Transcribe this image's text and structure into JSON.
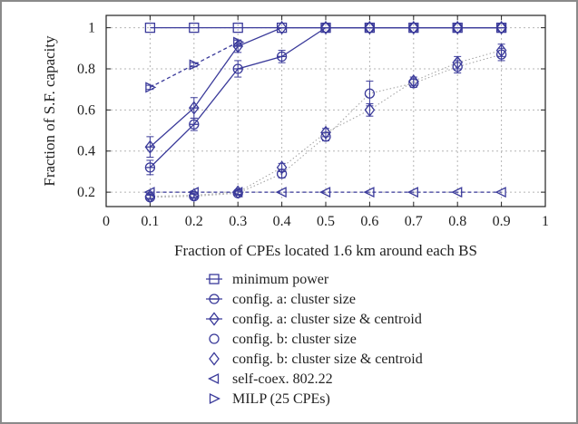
{
  "chart_data": {
    "type": "line",
    "xlabel": "Fraction of CPEs located 1.6 km around each BS",
    "ylabel": "Fraction of S.F. capacity",
    "xlim": [
      0,
      1
    ],
    "ylim": [
      0.13,
      1.06
    ],
    "xticks": [
      "0",
      "0.1",
      "0.2",
      "0.3",
      "0.4",
      "0.5",
      "0.6",
      "0.7",
      "0.8",
      "0.9",
      "1"
    ],
    "yticks": [
      "0.2",
      "0.4",
      "0.6",
      "0.8",
      "1"
    ],
    "grid": true,
    "legend_position": "below",
    "series": [
      {
        "name": "minimum power",
        "marker": "square",
        "line": "solid",
        "color": "#3a3a9a",
        "x": [
          0.1,
          0.2,
          0.3,
          0.4,
          0.5,
          0.6,
          0.7,
          0.8,
          0.9
        ],
        "y": [
          1,
          1,
          1,
          1,
          1,
          1,
          1,
          1,
          1
        ],
        "err": [
          0,
          0,
          0,
          0,
          0,
          0,
          0,
          0,
          0
        ]
      },
      {
        "name": "config. a: cluster size",
        "marker": "circle-line",
        "line": "solid",
        "color": "#3a3a9a",
        "x": [
          0.1,
          0.2,
          0.3,
          0.4,
          0.5,
          0.6,
          0.7,
          0.8,
          0.9
        ],
        "y": [
          0.32,
          0.53,
          0.8,
          0.86,
          1,
          1,
          1,
          1,
          1
        ],
        "err": [
          0.035,
          0.03,
          0.04,
          0.03,
          0,
          0,
          0,
          0,
          0
        ]
      },
      {
        "name": "config. a: cluster size & centroid",
        "marker": "diamond-line",
        "line": "solid",
        "color": "#3a3a9a",
        "x": [
          0.1,
          0.2,
          0.3,
          0.4,
          0.5,
          0.6,
          0.7,
          0.8,
          0.9
        ],
        "y": [
          0.42,
          0.61,
          0.91,
          1,
          1,
          1,
          1,
          1,
          1
        ],
        "err": [
          0.05,
          0.05,
          0.03,
          0,
          0,
          0,
          0,
          0,
          0
        ]
      },
      {
        "name": "config. b: cluster size",
        "marker": "circle",
        "line": "dotted",
        "color": "#3a3a9a",
        "x": [
          0.1,
          0.2,
          0.3,
          0.4,
          0.5,
          0.6,
          0.7,
          0.8,
          0.9
        ],
        "y": [
          0.175,
          0.18,
          0.195,
          0.29,
          0.47,
          0.68,
          0.73,
          0.81,
          0.87
        ],
        "err": [
          0.01,
          0.01,
          0.01,
          0.02,
          0.02,
          0.06,
          0.02,
          0.03,
          0.03
        ]
      },
      {
        "name": "config. b: cluster size & centroid",
        "marker": "diamond",
        "line": "dotted",
        "color": "#3a3a9a",
        "x": [
          0.1,
          0.2,
          0.3,
          0.4,
          0.5,
          0.6,
          0.7,
          0.8,
          0.9
        ],
        "y": [
          0.18,
          0.185,
          0.2,
          0.32,
          0.49,
          0.6,
          0.74,
          0.83,
          0.89
        ],
        "err": [
          0.01,
          0.01,
          0.01,
          0.02,
          0.02,
          0.03,
          0.02,
          0.03,
          0.03
        ]
      },
      {
        "name": "self-coex. 802.22",
        "marker": "triangle-left",
        "line": "dashed",
        "color": "#3a3a9a",
        "x": [
          0.1,
          0.2,
          0.3,
          0.4,
          0.5,
          0.6,
          0.7,
          0.8,
          0.9
        ],
        "y": [
          0.2,
          0.2,
          0.2,
          0.2,
          0.2,
          0.2,
          0.2,
          0.2,
          0.2
        ],
        "err": [
          0,
          0,
          0,
          0,
          0,
          0,
          0,
          0,
          0
        ]
      },
      {
        "name": "MILP (25 CPEs)",
        "marker": "triangle-right",
        "line": "dashed",
        "color": "#3a3a9a",
        "x": [
          0.1,
          0.2,
          0.3
        ],
        "y": [
          0.71,
          0.82,
          0.93
        ],
        "err": [
          0.01,
          0.01,
          0.01
        ]
      }
    ]
  }
}
